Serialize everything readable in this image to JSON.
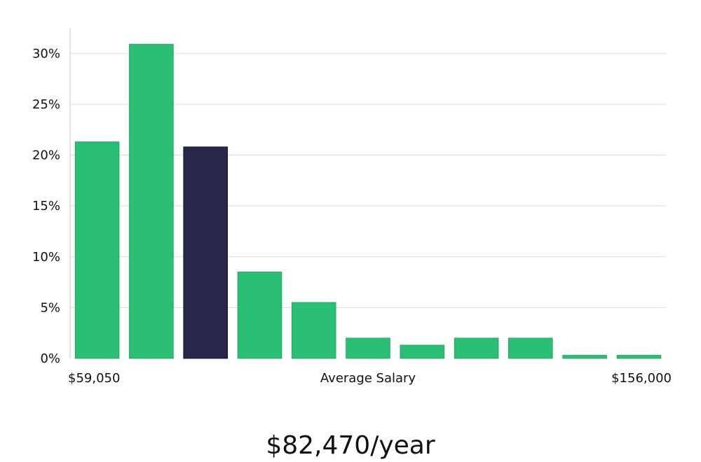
{
  "chart_data": {
    "type": "bar",
    "categories": [
      "",
      "",
      "",
      "",
      "",
      "",
      "",
      "",
      "",
      "",
      ""
    ],
    "values": [
      21.3,
      30.9,
      20.8,
      8.5,
      5.5,
      2.0,
      1.3,
      2.0,
      2.0,
      0.3,
      0.3
    ],
    "highlight_index": 2,
    "ylim": [
      0,
      32.5
    ],
    "yticks": [
      0,
      5,
      10,
      15,
      20,
      25,
      30
    ],
    "ytick_labels": [
      "0%",
      "5%",
      "10%",
      "15%",
      "20%",
      "25%",
      "30%"
    ],
    "x_min_label": "$59,050",
    "x_max_label": "$156,000",
    "xlabel": "Average Salary",
    "grid": true,
    "colors": {
      "bar": "#2bbf76",
      "highlight": "#28264a",
      "grid": "#dddddd",
      "axis": "#cccccc"
    }
  },
  "headline": "$82,470/year"
}
